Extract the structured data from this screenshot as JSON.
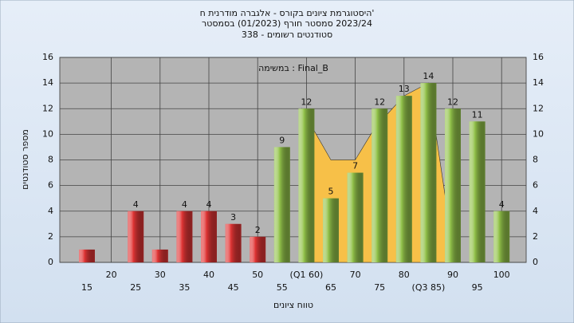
{
  "chart_data": {
    "type": "bar",
    "title": [
      "היסטוגרמת ציונים בקורס - אלגברה מודרנית ח'",
      "2023/24 סמסטר חורף (01/2023) בסמסטר",
      "סטודנטים רשומים - 338"
    ],
    "annotation": "במשימה : Final_B",
    "xlabel": "טווח ציונים",
    "ylabel": "מספר סטודנטים",
    "categories": [
      "15",
      "20",
      "25",
      "30",
      "35",
      "40",
      "45",
      "50",
      "55",
      "(Q1 60)",
      "65",
      "70",
      "75",
      "80",
      "(Q3 85)",
      "90",
      "95",
      "100"
    ],
    "values": [
      1,
      0,
      4,
      1,
      4,
      4,
      3,
      2,
      9,
      12,
      5,
      7,
      12,
      13,
      14,
      12,
      11,
      4
    ],
    "value_labels": [
      null,
      null,
      "4",
      null,
      "4",
      "4",
      "3",
      "2",
      "9",
      "12",
      "5",
      "7",
      "12",
      "13",
      "14",
      "12",
      "11",
      "4"
    ],
    "colors": [
      "#e03535",
      "#e03535",
      "#e03535",
      "#e03535",
      "#e03535",
      "#e03535",
      "#e03535",
      "#e03535",
      "#92c24a",
      "#92c24a",
      "#92c24a",
      "#92c24a",
      "#92c24a",
      "#92c24a",
      "#92c24a",
      "#92c24a",
      "#92c24a",
      "#92c24a"
    ],
    "area": {
      "color": "#f7c048",
      "x": [
        59,
        65,
        70,
        74,
        80,
        85,
        88.5
      ],
      "values": [
        12,
        8,
        8,
        10.5,
        13,
        14,
        5
      ]
    },
    "ylim": [
      0,
      16
    ],
    "yticks": [
      0,
      2,
      4,
      6,
      8,
      10,
      12,
      14,
      16
    ],
    "grid": true
  }
}
